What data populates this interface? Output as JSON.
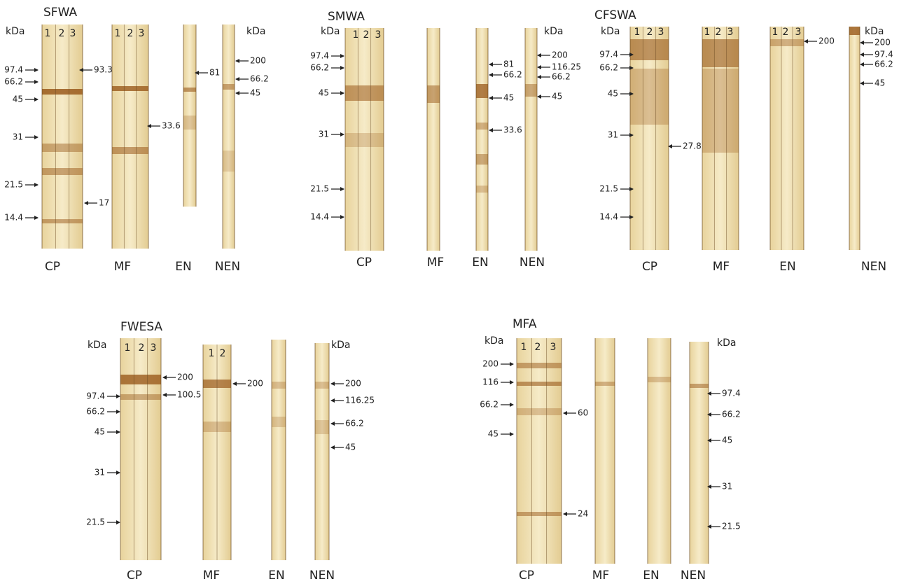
{
  "panels": [
    {
      "title": "SFWA",
      "kda_labels": [
        "kDa",
        "kDa"
      ],
      "lane_numbers": [
        "1",
        "2",
        "3",
        "1",
        "2",
        "3"
      ],
      "markers": [
        "97.4",
        "66.2",
        "45",
        "31",
        "21.5",
        "14.4"
      ],
      "annotations": [
        "93.3",
        "33.6",
        "17",
        "81",
        "200",
        "66.2",
        "45"
      ],
      "fractions": [
        "CP",
        "MF",
        "EN",
        "NEN"
      ]
    },
    {
      "title": "SMWA",
      "kda_labels": [
        "kDa",
        "kDa"
      ],
      "lane_numbers": [
        "1",
        "2",
        "3"
      ],
      "markers": [
        "97.4",
        "66.2",
        "45",
        "31",
        "21.5",
        "14.4"
      ],
      "annotations": [
        "81",
        "66.2",
        "45",
        "33.6",
        "200",
        "116.25",
        "66.2",
        "45"
      ],
      "fractions": [
        "CP",
        "MF",
        "EN",
        "NEN"
      ]
    },
    {
      "title": "CFSWA",
      "kda_labels": [
        "kDa",
        "kDa"
      ],
      "lane_numbers": [
        "1",
        "2",
        "3",
        "1",
        "2",
        "3",
        "1",
        "2",
        "3"
      ],
      "markers": [
        "97.4",
        "66.2",
        "45",
        "31",
        "21.5",
        "14.4"
      ],
      "annotations": [
        "27.8",
        "200",
        "200",
        "97.4",
        "66.2",
        "45"
      ],
      "fractions": [
        "CP",
        "MF",
        "EN",
        "NEN"
      ]
    },
    {
      "title": "FWESA",
      "kda_labels": [
        "kDa",
        "kDa"
      ],
      "lane_numbers": [
        "1",
        "2",
        "3",
        "1",
        "2"
      ],
      "markers": [
        "97.4",
        "66.2",
        "45",
        "31",
        "21.5"
      ],
      "annotations": [
        "200",
        "100.5",
        "200",
        "200",
        "116.25",
        "66.2",
        "45"
      ],
      "fractions": [
        "CP",
        "MF",
        "EN",
        "NEN"
      ]
    },
    {
      "title": "MFA",
      "kda_labels": [
        "kDa",
        "kDa"
      ],
      "lane_numbers": [
        "1",
        "2",
        "3"
      ],
      "markers": [
        "200",
        "116",
        "66.2",
        "45"
      ],
      "annotations": [
        "60",
        "24",
        "97.4",
        "66.2",
        "45",
        "31",
        "21.5"
      ],
      "fractions": [
        "CP",
        "MF",
        "EN",
        "NEN"
      ]
    }
  ]
}
